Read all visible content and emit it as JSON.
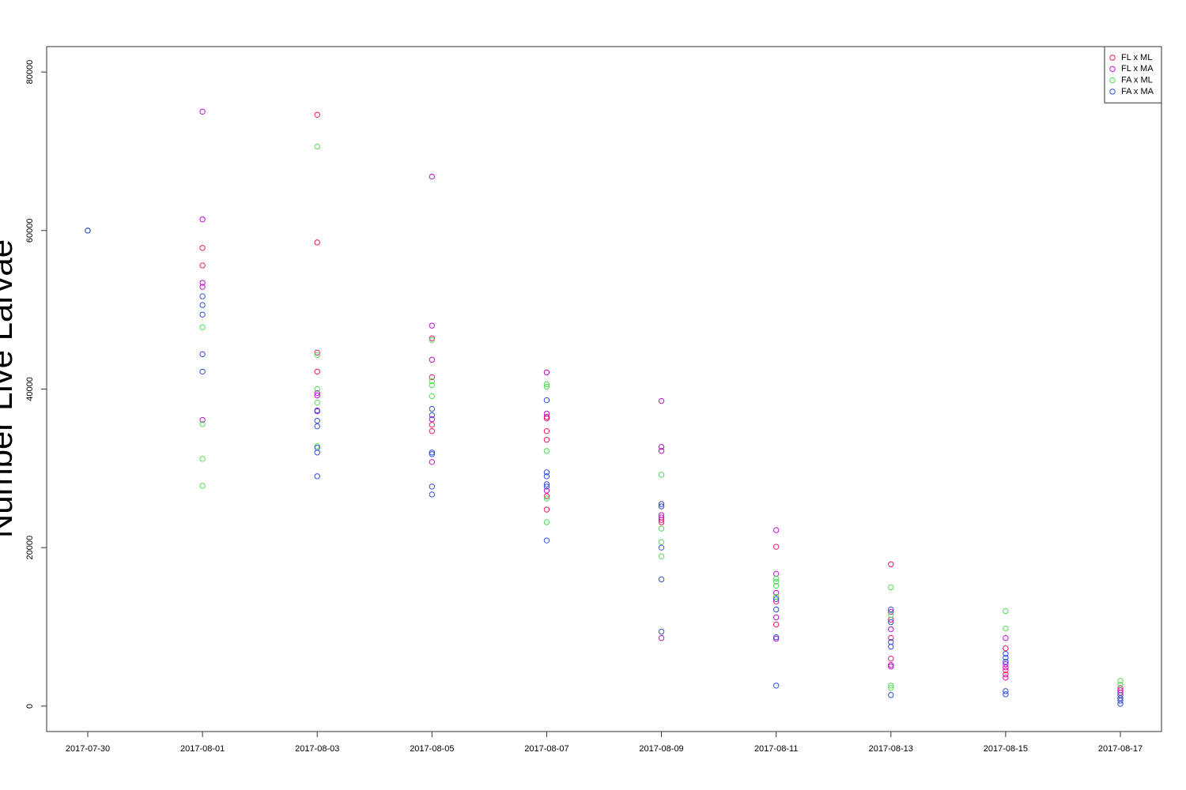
{
  "chart_data": {
    "type": "scatter",
    "ylabel": "Number Live Larvae",
    "xlim": [
      "2017-07-29T06:48",
      "2017-08-17T17:12"
    ],
    "xticks": [
      "2017-07-30",
      "2017-08-01",
      "2017-08-03",
      "2017-08-05",
      "2017-08-07",
      "2017-08-09",
      "2017-08-11",
      "2017-08-13",
      "2017-08-15",
      "2017-08-17"
    ],
    "ylim": [
      -3200,
      83200
    ],
    "yticks": [
      0,
      20000,
      40000,
      60000,
      80000
    ],
    "legend": "top-right",
    "series": [
      {
        "name": "FL x ML",
        "color": "#f0186a",
        "x": [
          "2017-07-30",
          "2017-08-01",
          "2017-08-01",
          "2017-08-03",
          "2017-08-03",
          "2017-08-03",
          "2017-08-03",
          "2017-08-05",
          "2017-08-05",
          "2017-08-05",
          "2017-08-05",
          "2017-08-07",
          "2017-08-07",
          "2017-08-07",
          "2017-08-07",
          "2017-08-07",
          "2017-08-07",
          "2017-08-09",
          "2017-08-09",
          "2017-08-11",
          "2017-08-11",
          "2017-08-11",
          "2017-08-13",
          "2017-08-13",
          "2017-08-13",
          "2017-08-13",
          "2017-08-15",
          "2017-08-15",
          "2017-08-15",
          "2017-08-17",
          "2017-08-17"
        ],
        "values": [
          60000,
          57800,
          55600,
          74600,
          58500,
          44600,
          42200,
          46400,
          41500,
          35500,
          34700,
          36500,
          36300,
          34700,
          33600,
          26500,
          24800,
          23500,
          23200,
          20100,
          13200,
          10300,
          17900,
          10900,
          8600,
          6000,
          7300,
          4500,
          4000,
          2300,
          1700
        ]
      },
      {
        "name": "FL x MA",
        "color": "#c010d0",
        "x": [
          "2017-07-30",
          "2017-08-01",
          "2017-08-01",
          "2017-08-01",
          "2017-08-01",
          "2017-08-01",
          "2017-08-03",
          "2017-08-03",
          "2017-08-03",
          "2017-08-05",
          "2017-08-05",
          "2017-08-05",
          "2017-08-05",
          "2017-08-05",
          "2017-08-07",
          "2017-08-07",
          "2017-08-07",
          "2017-08-09",
          "2017-08-09",
          "2017-08-09",
          "2017-08-09",
          "2017-08-09",
          "2017-08-09",
          "2017-08-11",
          "2017-08-11",
          "2017-08-11",
          "2017-08-11",
          "2017-08-11",
          "2017-08-13",
          "2017-08-13",
          "2017-08-13",
          "2017-08-13",
          "2017-08-15",
          "2017-08-15",
          "2017-08-15",
          "2017-08-15",
          "2017-08-17"
        ],
        "values": [
          60000,
          75000,
          61400,
          53400,
          52900,
          36100,
          39500,
          39200,
          37200,
          66800,
          48000,
          43700,
          36200,
          30800,
          42100,
          36900,
          27200,
          38500,
          32700,
          32200,
          24100,
          23800,
          8600,
          22200,
          16700,
          14300,
          11200,
          8500,
          11900,
          9700,
          5200,
          5000,
          8600,
          5300,
          4900,
          3600,
          2000
        ]
      },
      {
        "name": "FA x ML",
        "color": "#50e050",
        "x": [
          "2017-07-30",
          "2017-08-01",
          "2017-08-01",
          "2017-08-01",
          "2017-08-01",
          "2017-08-03",
          "2017-08-03",
          "2017-08-03",
          "2017-08-03",
          "2017-08-03",
          "2017-08-05",
          "2017-08-05",
          "2017-08-05",
          "2017-08-05",
          "2017-08-07",
          "2017-08-07",
          "2017-08-07",
          "2017-08-07",
          "2017-08-07",
          "2017-08-09",
          "2017-08-09",
          "2017-08-09",
          "2017-08-09",
          "2017-08-11",
          "2017-08-11",
          "2017-08-11",
          "2017-08-11",
          "2017-08-13",
          "2017-08-13",
          "2017-08-13",
          "2017-08-13",
          "2017-08-15",
          "2017-08-15",
          "2017-08-17",
          "2017-08-17"
        ],
        "values": [
          60000,
          47800,
          35600,
          31200,
          27800,
          70600,
          44300,
          40000,
          38300,
          32800,
          46200,
          41000,
          40500,
          39100,
          40600,
          40300,
          32200,
          26200,
          23200,
          29200,
          22400,
          20700,
          18900,
          16100,
          15700,
          15200,
          13800,
          15000,
          11500,
          2600,
          2300,
          12000,
          9800,
          3200,
          2700
        ]
      },
      {
        "name": "FA x MA",
        "color": "#3050d8",
        "x": [
          "2017-07-30",
          "2017-08-01",
          "2017-08-01",
          "2017-08-01",
          "2017-08-01",
          "2017-08-01",
          "2017-08-03",
          "2017-08-03",
          "2017-08-03",
          "2017-08-03",
          "2017-08-03",
          "2017-08-03",
          "2017-08-05",
          "2017-08-05",
          "2017-08-05",
          "2017-08-05",
          "2017-08-05",
          "2017-08-05",
          "2017-08-07",
          "2017-08-07",
          "2017-08-07",
          "2017-08-07",
          "2017-08-07",
          "2017-08-07",
          "2017-08-09",
          "2017-08-09",
          "2017-08-09",
          "2017-08-09",
          "2017-08-09",
          "2017-08-11",
          "2017-08-11",
          "2017-08-11",
          "2017-08-11",
          "2017-08-13",
          "2017-08-13",
          "2017-08-13",
          "2017-08-13",
          "2017-08-13",
          "2017-08-15",
          "2017-08-15",
          "2017-08-15",
          "2017-08-15",
          "2017-08-15",
          "2017-08-17",
          "2017-08-17",
          "2017-08-17",
          "2017-08-17"
        ],
        "values": [
          60000,
          51700,
          50600,
          49400,
          44400,
          42200,
          37300,
          36000,
          35300,
          32600,
          32000,
          29000,
          37500,
          36700,
          32000,
          31800,
          27700,
          26700,
          38600,
          29500,
          29000,
          28000,
          27700,
          20900,
          25500,
          25200,
          20000,
          16000,
          9400,
          13500,
          12200,
          8700,
          2600,
          12200,
          10600,
          8100,
          7500,
          1400,
          6600,
          6100,
          5600,
          1900,
          1500,
          1400,
          1000,
          700,
          300
        ]
      }
    ]
  }
}
